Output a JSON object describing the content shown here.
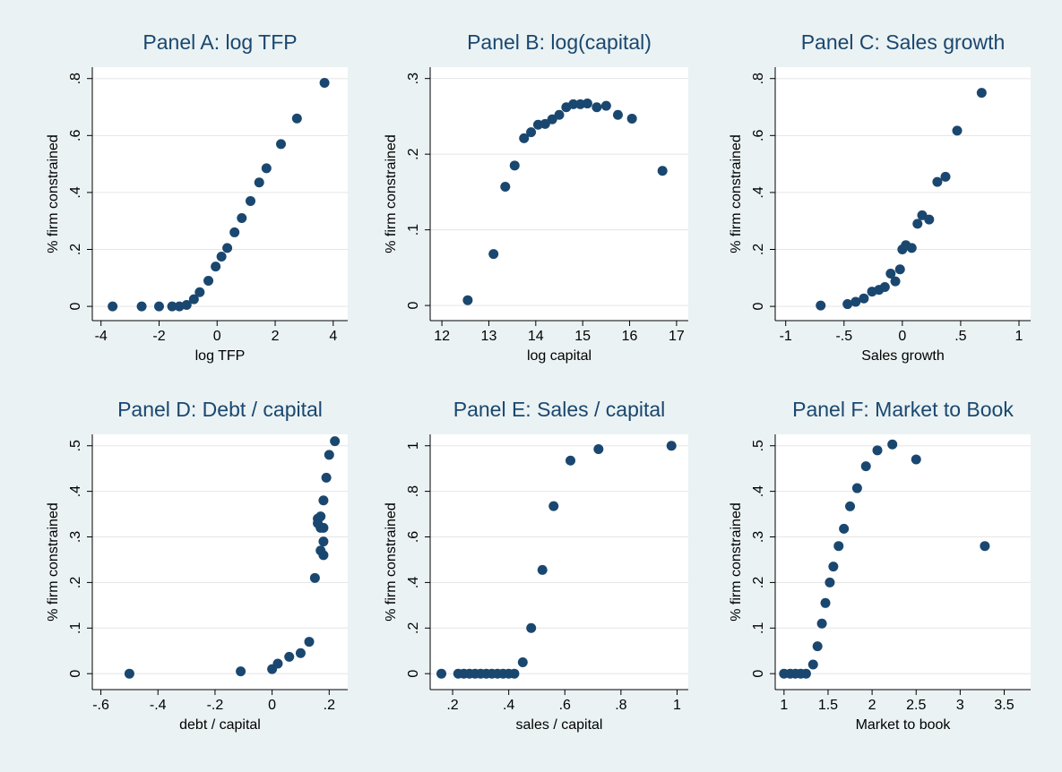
{
  "chart_data": [
    {
      "type": "scatter",
      "title": "Panel A: log TFP",
      "x_label": "log TFP",
      "y_label": "% firm constrained",
      "color": "#1a476f",
      "grid": true,
      "x": [
        -3.6,
        -2.6,
        -2,
        -1.55,
        -1.3,
        -1.05,
        -0.8,
        -0.6,
        -0.3,
        -0.05,
        0.15,
        0.35,
        0.6,
        0.85,
        1.15,
        1.45,
        1.7,
        2.2,
        2.75,
        3.7
      ],
      "values": [
        0,
        0,
        0,
        0,
        0,
        0.005,
        0.025,
        0.05,
        0.09,
        0.14,
        0.175,
        0.205,
        0.26,
        0.31,
        0.37,
        0.435,
        0.485,
        0.57,
        0.66,
        0.785
      ],
      "xlim": [
        -4.3,
        4.5
      ],
      "ylim": [
        -0.05,
        0.84
      ],
      "xticks": [
        -4,
        -2,
        0,
        2,
        4
      ],
      "yticks": [
        0,
        {
          "value": 0.2,
          "label": ".2"
        },
        {
          "value": 0.4,
          "label": ".4"
        },
        {
          "value": 0.6,
          "label": ".6"
        },
        {
          "value": 0.8,
          "label": ".8"
        }
      ]
    },
    {
      "type": "scatter",
      "title": "Panel B: log(capital)",
      "x_label": "log capital",
      "y_label": "% firm constrained",
      "color": "#1a476f",
      "grid": true,
      "x": [
        12.55,
        13.1,
        13.35,
        13.55,
        13.75,
        13.9,
        14.05,
        14.2,
        14.35,
        14.5,
        14.65,
        14.8,
        14.95,
        15.1,
        15.3,
        15.5,
        15.75,
        16.05,
        16.7
      ],
      "values": [
        0.007,
        0.068,
        0.157,
        0.185,
        0.221,
        0.229,
        0.239,
        0.24,
        0.246,
        0.252,
        0.262,
        0.266,
        0.266,
        0.267,
        0.262,
        0.264,
        0.252,
        0.247,
        0.178
      ],
      "xlim": [
        11.75,
        17.25
      ],
      "ylim": [
        -0.02,
        0.315
      ],
      "xticks": [
        12,
        13,
        14,
        15,
        16,
        17
      ],
      "yticks": [
        0,
        {
          "value": 0.1,
          "label": ".1"
        },
        {
          "value": 0.2,
          "label": ".2"
        },
        {
          "value": 0.3,
          "label": ".3"
        }
      ]
    },
    {
      "type": "scatter",
      "title": "Panel C: Sales growth",
      "x_label": "Sales growth",
      "y_label": "% firm constrained",
      "color": "#1a476f",
      "grid": true,
      "x": [
        -0.7,
        -0.47,
        -0.4,
        -0.33,
        -0.26,
        -0.2,
        -0.15,
        -0.1,
        -0.06,
        -0.02,
        0,
        0.03,
        0.08,
        0.13,
        0.17,
        0.23,
        0.3,
        0.37,
        0.47,
        0.68
      ],
      "values": [
        0.003,
        0.008,
        0.016,
        0.028,
        0.052,
        0.058,
        0.068,
        0.115,
        0.088,
        0.13,
        0.2,
        0.215,
        0.205,
        0.29,
        0.32,
        0.305,
        0.437,
        0.455,
        0.617,
        0.75
      ],
      "xlim": [
        -1.09,
        1.1
      ],
      "ylim": [
        -0.05,
        0.84
      ],
      "xticks": [
        -1,
        {
          "value": -0.5,
          "label": "-.5"
        },
        0,
        {
          "value": 0.5,
          "label": ".5"
        },
        1
      ],
      "yticks": [
        0,
        {
          "value": 0.2,
          "label": ".2"
        },
        {
          "value": 0.4,
          "label": ".4"
        },
        {
          "value": 0.6,
          "label": ".6"
        },
        {
          "value": 0.8,
          "label": ".8"
        }
      ]
    },
    {
      "type": "scatter",
      "title": "Panel D: Debt / capital",
      "x_label": "debt / capital",
      "y_label": "% firm constrained",
      "color": "#1a476f",
      "grid": true,
      "x": [
        -0.5,
        -0.11,
        0,
        0.02,
        0.06,
        0.1,
        0.13,
        0.15,
        0.16,
        0.16,
        0.17,
        0.18,
        0.17,
        0.18,
        0.18,
        0.17,
        0.18,
        0.19,
        0.2,
        0.22
      ],
      "values": [
        0,
        0.005,
        0.01,
        0.022,
        0.037,
        0.045,
        0.07,
        0.21,
        0.34,
        0.33,
        0.32,
        0.32,
        0.345,
        0.29,
        0.26,
        0.27,
        0.38,
        0.43,
        0.48,
        0.51
      ],
      "xlim": [
        -0.63,
        0.265
      ],
      "ylim": [
        -0.035,
        0.525
      ],
      "xticks": [
        {
          "value": -0.6,
          "label": "-.6"
        },
        {
          "value": -0.4,
          "label": "-.4"
        },
        {
          "value": -0.2,
          "label": "-.2"
        },
        0,
        {
          "value": 0.2,
          "label": ".2"
        }
      ],
      "yticks": [
        0,
        {
          "value": 0.1,
          "label": ".1"
        },
        {
          "value": 0.2,
          "label": ".2"
        },
        {
          "value": 0.3,
          "label": ".3"
        },
        {
          "value": 0.4,
          "label": ".4"
        },
        {
          "value": 0.5,
          "label": ".5"
        }
      ]
    },
    {
      "type": "scatter",
      "title": "Panel E: Sales / capital",
      "x_label": "sales / capital",
      "y_label": "% firm constrained",
      "color": "#1a476f",
      "grid": true,
      "x": [
        0.16,
        0.22,
        0.24,
        0.26,
        0.28,
        0.3,
        0.32,
        0.34,
        0.36,
        0.38,
        0.4,
        0.42,
        0.45,
        0.48,
        0.52,
        0.56,
        0.62,
        0.72,
        0.98
      ],
      "values": [
        0,
        0,
        0,
        0,
        0,
        0,
        0,
        0,
        0,
        0,
        0,
        0,
        0.05,
        0.2,
        0.455,
        0.735,
        0.935,
        0.985,
        1
      ],
      "xlim": [
        0.12,
        1.04
      ],
      "ylim": [
        -0.07,
        1.05
      ],
      "xticks": [
        {
          "value": 0.2,
          "label": ".2"
        },
        {
          "value": 0.4,
          "label": ".4"
        },
        {
          "value": 0.6,
          "label": ".6"
        },
        {
          "value": 0.8,
          "label": ".8"
        },
        1
      ],
      "yticks": [
        0,
        {
          "value": 0.2,
          "label": ".2"
        },
        {
          "value": 0.4,
          "label": ".4"
        },
        {
          "value": 0.6,
          "label": ".6"
        },
        {
          "value": 0.8,
          "label": ".8"
        },
        1
      ]
    },
    {
      "type": "scatter",
      "title": "Panel F: Market to Book",
      "x_label": "Market to book",
      "y_label": "% firm constrained",
      "color": "#1a476f",
      "grid": true,
      "x": [
        1,
        1.07,
        1.13,
        1.19,
        1.25,
        1.33,
        1.38,
        1.43,
        1.47,
        1.52,
        1.56,
        1.62,
        1.68,
        1.75,
        1.83,
        1.93,
        2.06,
        2.23,
        2.5,
        3.28
      ],
      "values": [
        0,
        0,
        0,
        0,
        0,
        0.02,
        0.06,
        0.11,
        0.155,
        0.2,
        0.235,
        0.28,
        0.318,
        0.367,
        0.407,
        0.455,
        0.49,
        0.503,
        0.47,
        0.28
      ],
      "xlim": [
        0.9,
        3.8
      ],
      "ylim": [
        -0.035,
        0.525
      ],
      "xticks": [
        1,
        1.5,
        2,
        2.5,
        3,
        3.5
      ],
      "yticks": [
        0,
        {
          "value": 0.1,
          "label": ".1"
        },
        {
          "value": 0.2,
          "label": ".2"
        },
        {
          "value": 0.3,
          "label": ".3"
        },
        {
          "value": 0.4,
          "label": ".4"
        },
        {
          "value": 0.5,
          "label": ".5"
        }
      ]
    }
  ]
}
